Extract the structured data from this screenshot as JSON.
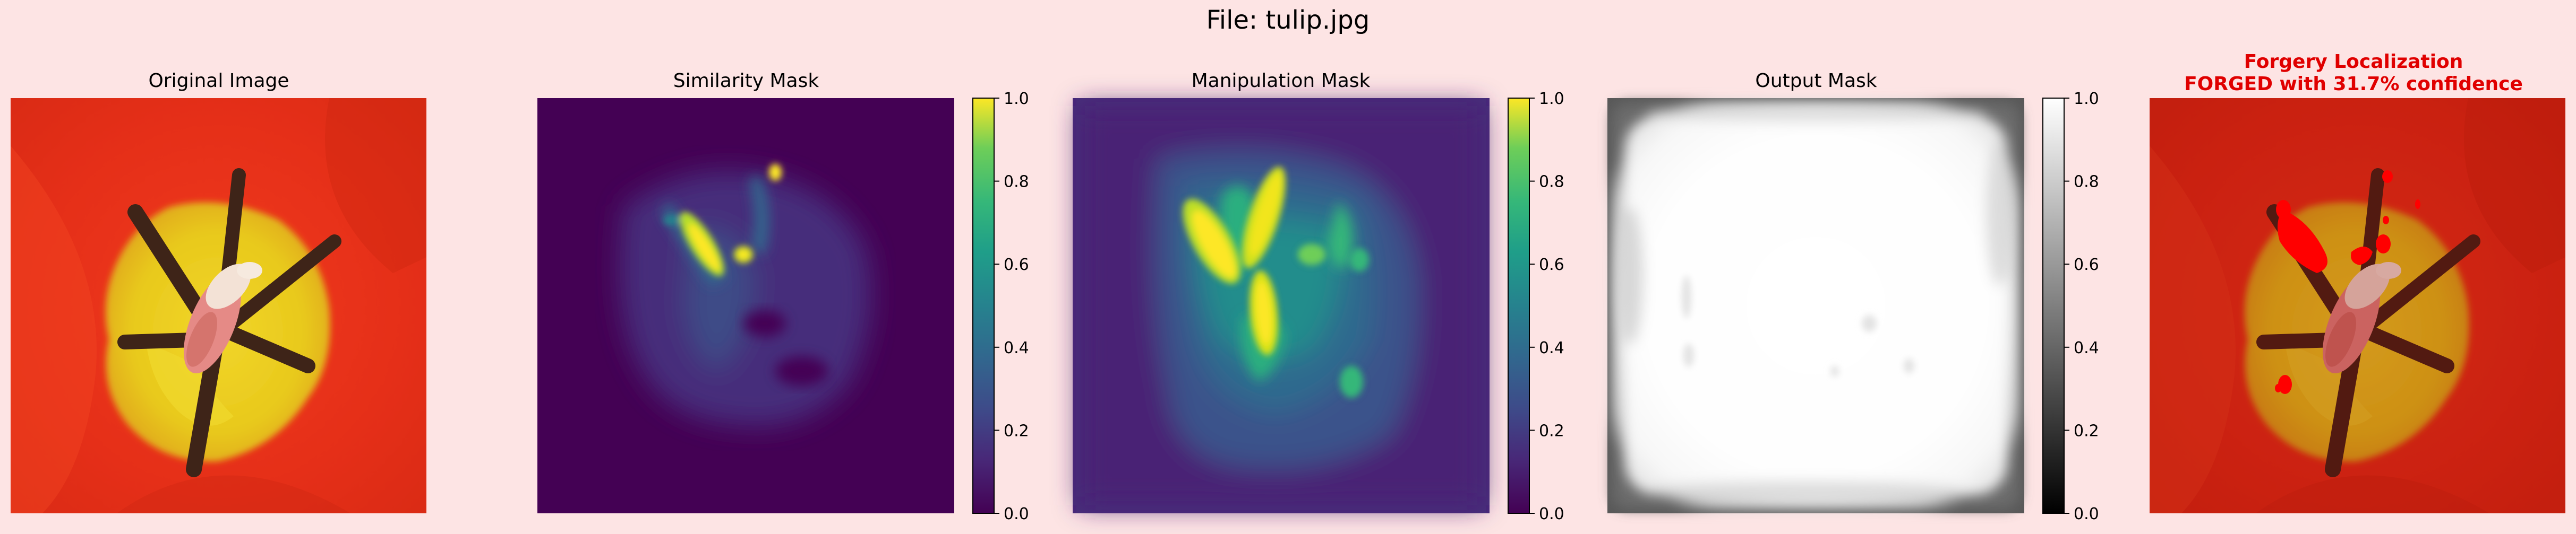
{
  "figure": {
    "title": "File: tulip.jpg"
  },
  "panels": [
    {
      "id": "original",
      "title": "Original Image"
    },
    {
      "id": "similarity",
      "title": "Similarity Mask",
      "colormap": "viridis"
    },
    {
      "id": "manipulation",
      "title": "Manipulation Mask",
      "colormap": "viridis"
    },
    {
      "id": "output",
      "title": "Output Mask",
      "colormap": "gray"
    },
    {
      "id": "localization",
      "title_line1": "Forgery Localization",
      "title_line2": "FORGED with 31.7% confidence",
      "title_color": "#e00000"
    }
  ],
  "chart_data": {
    "type": "heatmap",
    "title": "File: tulip.jpg",
    "colorbars": [
      {
        "panel": "Similarity Mask",
        "colormap": "viridis",
        "range": [
          0.0,
          1.0
        ],
        "ticks": [
          "0.0",
          "0.2",
          "0.4",
          "0.6",
          "0.8",
          "1.0"
        ]
      },
      {
        "panel": "Manipulation Mask",
        "colormap": "viridis",
        "range": [
          0.0,
          1.0
        ],
        "ticks": [
          "0.0",
          "0.2",
          "0.4",
          "0.6",
          "0.8",
          "1.0"
        ]
      },
      {
        "panel": "Output Mask",
        "colormap": "gray",
        "range": [
          0.0,
          1.0
        ],
        "ticks": [
          "0.0",
          "0.2",
          "0.4",
          "0.6",
          "0.8",
          "1.0"
        ]
      }
    ],
    "result": {
      "label": "FORGED",
      "confidence_percent": 31.7
    },
    "colors": {
      "viridis_low": "#440154",
      "viridis_mid": "#21918c",
      "viridis_high": "#fde725",
      "petal_red": "#e8301a",
      "forged_overlay": "#ff0000"
    }
  }
}
